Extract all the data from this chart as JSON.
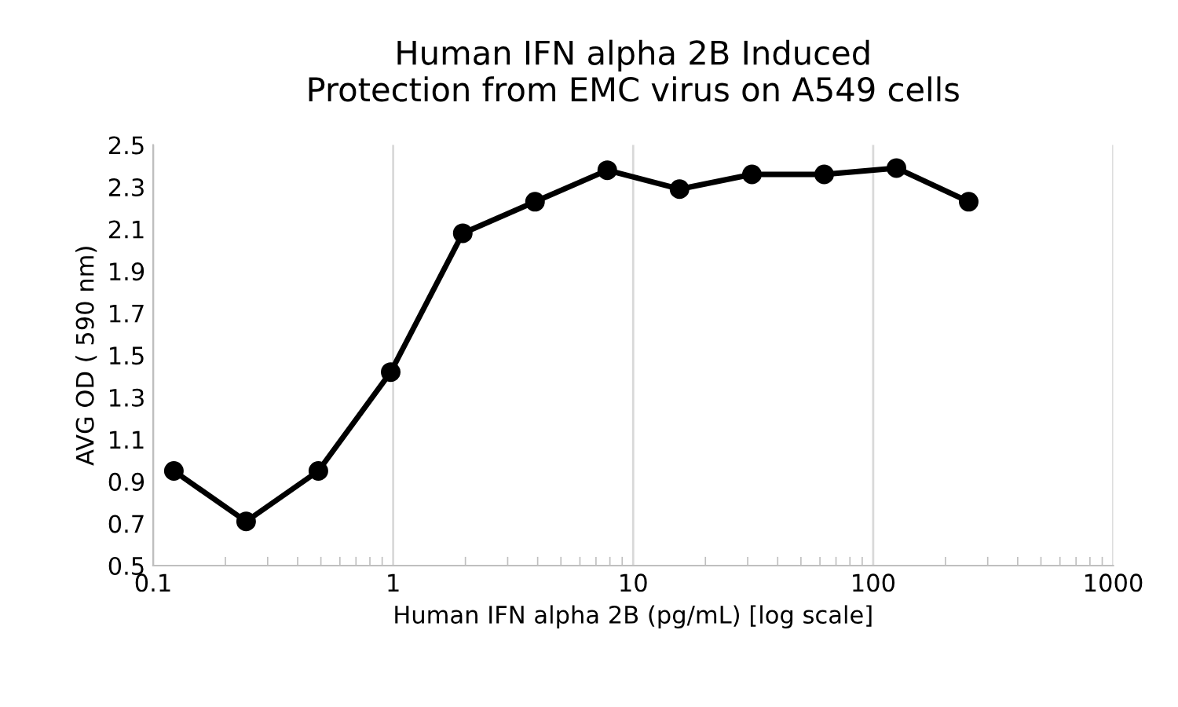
{
  "chart_data": {
    "type": "line",
    "title": "Human IFN alpha 2B Induced\nProtection from EMC virus on A549 cells",
    "xlabel": "Human IFN alpha 2B (pg/mL) [log scale]",
    "ylabel": "AVG OD ( 590 nm)",
    "x": [
      0.122,
      0.244,
      0.488,
      0.977,
      1.95,
      3.9,
      7.8,
      15.6,
      31.25,
      62.5,
      125,
      250
    ],
    "series": [
      {
        "color": "#000000",
        "values": [
          0.95,
          0.71,
          0.95,
          1.42,
          2.08,
          2.23,
          2.38,
          2.29,
          2.36,
          2.36,
          2.39,
          2.23
        ]
      }
    ],
    "log": "x",
    "xlim": [
      0.1,
      1000
    ],
    "ylim": [
      0.5,
      2.5
    ],
    "xticks": [
      {
        "value": 0.1,
        "label": "0.1"
      },
      {
        "value": 0.2,
        "label": null
      },
      {
        "value": 0.3,
        "label": null
      },
      {
        "value": 0.4,
        "label": null
      },
      {
        "value": 0.5,
        "label": null
      },
      {
        "value": 0.6,
        "label": null
      },
      {
        "value": 0.7,
        "label": null
      },
      {
        "value": 0.8,
        "label": null
      },
      {
        "value": 0.9,
        "label": null
      },
      {
        "value": 1,
        "label": "1"
      },
      {
        "value": 2,
        "label": null
      },
      {
        "value": 3,
        "label": null
      },
      {
        "value": 4,
        "label": null
      },
      {
        "value": 5,
        "label": null
      },
      {
        "value": 6,
        "label": null
      },
      {
        "value": 7,
        "label": null
      },
      {
        "value": 8,
        "label": null
      },
      {
        "value": 9,
        "label": null
      },
      {
        "value": 10,
        "label": "10"
      },
      {
        "value": 20,
        "label": null
      },
      {
        "value": 30,
        "label": null
      },
      {
        "value": 40,
        "label": null
      },
      {
        "value": 50,
        "label": null
      },
      {
        "value": 60,
        "label": null
      },
      {
        "value": 70,
        "label": null
      },
      {
        "value": 80,
        "label": null
      },
      {
        "value": 90,
        "label": null
      },
      {
        "value": 100,
        "label": "100"
      },
      {
        "value": 200,
        "label": null
      },
      {
        "value": 300,
        "label": null
      },
      {
        "value": 400,
        "label": null
      },
      {
        "value": 500,
        "label": null
      },
      {
        "value": 600,
        "label": null
      },
      {
        "value": 700,
        "label": null
      },
      {
        "value": 800,
        "label": null
      },
      {
        "value": 900,
        "label": null
      },
      {
        "value": 1000,
        "label": "1000"
      }
    ],
    "yticks": [
      {
        "value": 0.5,
        "label": "0.5"
      },
      {
        "value": 0.7,
        "label": "0.7"
      },
      {
        "value": 0.9,
        "label": "0.9"
      },
      {
        "value": 1.1,
        "label": "1.1"
      },
      {
        "value": 1.3,
        "label": "1.3"
      },
      {
        "value": 1.5,
        "label": "1.5"
      },
      {
        "value": 1.7,
        "label": "1.7"
      },
      {
        "value": 1.9,
        "label": "1.9"
      },
      {
        "value": 2.1,
        "label": "2.1"
      },
      {
        "value": 2.3,
        "label": "2.3"
      },
      {
        "value": 2.5,
        "label": "2.5"
      }
    ],
    "grid": "x",
    "marker": "circle",
    "line_style": "solid",
    "legend": false
  }
}
